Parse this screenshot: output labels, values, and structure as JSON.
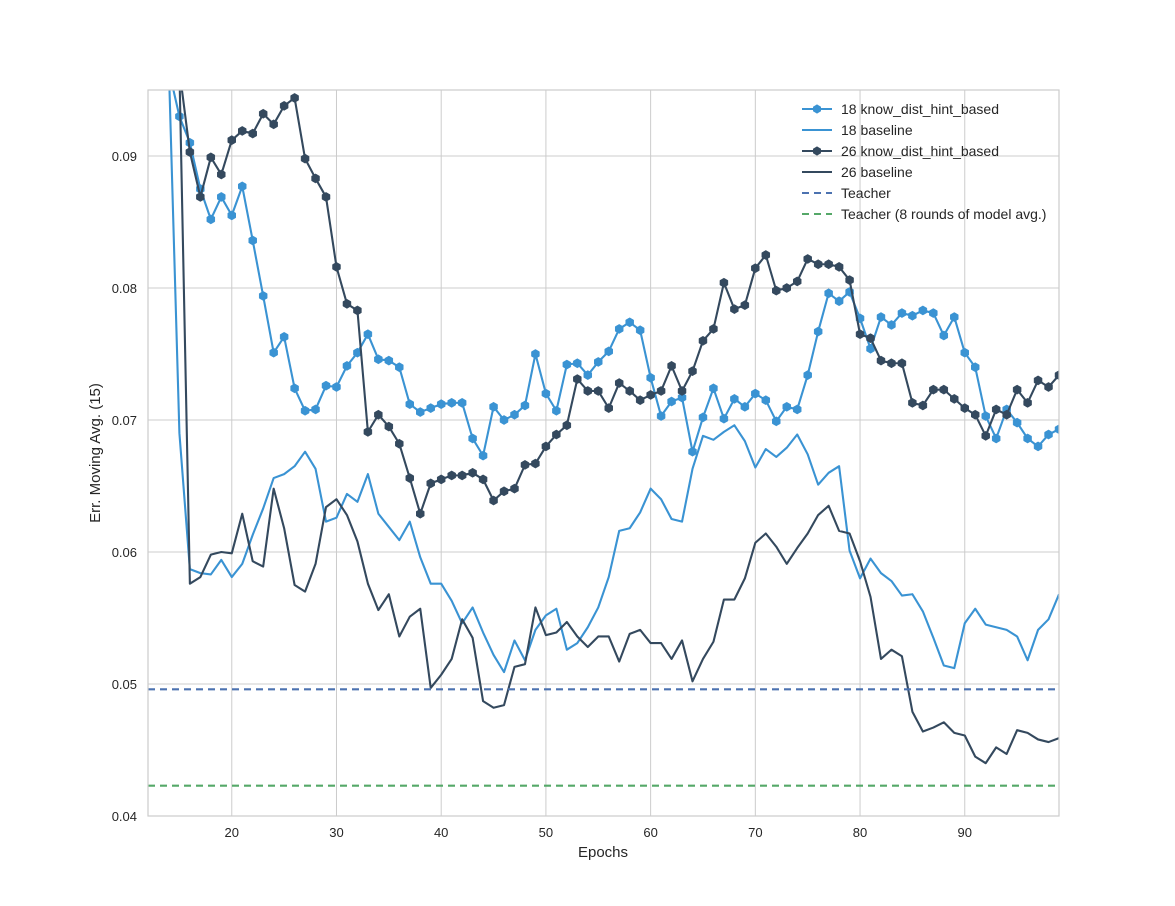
{
  "chart_data": {
    "type": "line",
    "title": "",
    "xlabel": "Epochs",
    "ylabel": "Err. Moving Avg. (15)",
    "xlim": [
      12,
      99
    ],
    "ylim": [
      0.04,
      0.095
    ],
    "xticks": [
      20,
      30,
      40,
      50,
      60,
      70,
      80,
      90
    ],
    "yticks": [
      0.04,
      0.05,
      0.06,
      0.07,
      0.08,
      0.09
    ],
    "xtick_labels": [
      "20",
      "30",
      "40",
      "50",
      "60",
      "70",
      "80",
      "90"
    ],
    "ytick_labels": [
      "0.04",
      "0.05",
      "0.06",
      "0.07",
      "0.08",
      "0.09"
    ],
    "grid": true,
    "legend_position": "top-right",
    "series": [
      {
        "name": "18 know_dist_hint_based",
        "color": "#3a93d3",
        "marker": "hexagon",
        "linestyle": "solid",
        "x": [
          14,
          15,
          16,
          17,
          18,
          19,
          20,
          21,
          22,
          23,
          24,
          25,
          26,
          27,
          28,
          29,
          30,
          31,
          32,
          33,
          34,
          35,
          36,
          37,
          38,
          39,
          40,
          41,
          42,
          43,
          44,
          45,
          46,
          47,
          48,
          49,
          50,
          51,
          52,
          53,
          54,
          55,
          56,
          57,
          58,
          59,
          60,
          61,
          62,
          63,
          64,
          65,
          66,
          67,
          68,
          69,
          70,
          71,
          72,
          73,
          74,
          75,
          76,
          77,
          78,
          79,
          80,
          81,
          82,
          83,
          84,
          85,
          86,
          87,
          88,
          89,
          90,
          91,
          92,
          93,
          94,
          95,
          96,
          97,
          98,
          99
        ],
        "y": [
          0.0965,
          0.093,
          0.091,
          0.0875,
          0.0852,
          0.0869,
          0.0855,
          0.0877,
          0.0836,
          0.0794,
          0.0751,
          0.0763,
          0.0724,
          0.0707,
          0.0708,
          0.0726,
          0.0725,
          0.0741,
          0.0751,
          0.0765,
          0.0746,
          0.0745,
          0.074,
          0.0712,
          0.0706,
          0.0709,
          0.0712,
          0.0713,
          0.0713,
          0.0686,
          0.0673,
          0.071,
          0.07,
          0.0704,
          0.0711,
          0.075,
          0.072,
          0.0707,
          0.0742,
          0.0743,
          0.0734,
          0.0744,
          0.0752,
          0.0769,
          0.0774,
          0.0768,
          0.0732,
          0.0703,
          0.0714,
          0.0717,
          0.0676,
          0.0702,
          0.0724,
          0.0701,
          0.0716,
          0.071,
          0.072,
          0.0715,
          0.0699,
          0.071,
          0.0708,
          0.0734,
          0.0767,
          0.0796,
          0.079,
          0.0797,
          0.0777,
          0.0754,
          0.0778,
          0.0772,
          0.0781,
          0.0779,
          0.0783,
          0.0781,
          0.0764,
          0.0778,
          0.0751,
          0.074,
          0.0703,
          0.0686,
          0.0708,
          0.0698,
          0.0686,
          0.068,
          0.0689,
          0.0693
        ]
      },
      {
        "name": "18 baseline",
        "color": "#3a93d3",
        "marker": "none",
        "linestyle": "solid",
        "x": [
          14,
          15,
          16,
          17,
          18,
          19,
          20,
          21,
          22,
          23,
          24,
          25,
          26,
          27,
          28,
          29,
          30,
          31,
          32,
          33,
          34,
          35,
          36,
          37,
          38,
          39,
          40,
          41,
          42,
          43,
          44,
          45,
          46,
          47,
          48,
          49,
          50,
          51,
          52,
          53,
          54,
          55,
          56,
          57,
          58,
          59,
          60,
          61,
          62,
          63,
          64,
          65,
          66,
          67,
          68,
          69,
          70,
          71,
          72,
          73,
          74,
          75,
          76,
          77,
          78,
          79,
          80,
          81,
          82,
          83,
          84,
          85,
          86,
          87,
          88,
          89,
          90,
          91,
          92,
          93,
          94,
          95,
          96,
          97,
          98,
          99
        ],
        "y": [
          0.0965,
          0.069,
          0.0587,
          0.0584,
          0.0583,
          0.0594,
          0.0581,
          0.0591,
          0.0613,
          0.0633,
          0.0656,
          0.0659,
          0.0665,
          0.0676,
          0.0663,
          0.0623,
          0.0626,
          0.0644,
          0.0638,
          0.0659,
          0.0629,
          0.0619,
          0.0609,
          0.0623,
          0.0596,
          0.0576,
          0.0576,
          0.0563,
          0.0546,
          0.0558,
          0.0539,
          0.0522,
          0.0509,
          0.0533,
          0.0518,
          0.0541,
          0.0552,
          0.0557,
          0.0526,
          0.0531,
          0.0543,
          0.0558,
          0.0581,
          0.0616,
          0.0618,
          0.063,
          0.0648,
          0.064,
          0.0625,
          0.0623,
          0.0663,
          0.0688,
          0.0685,
          0.0691,
          0.0696,
          0.0684,
          0.0664,
          0.0678,
          0.0672,
          0.0679,
          0.0689,
          0.0674,
          0.0651,
          0.066,
          0.0665,
          0.0601,
          0.058,
          0.0595,
          0.0584,
          0.0578,
          0.0567,
          0.0568,
          0.0555,
          0.0535,
          0.0514,
          0.0512,
          0.0546,
          0.0557,
          0.0545,
          0.0543,
          0.0541,
          0.0536,
          0.0518,
          0.0541,
          0.0549,
          0.0568
        ]
      },
      {
        "name": "26 know_dist_hint_based",
        "color": "#34495e",
        "marker": "hexagon",
        "linestyle": "solid",
        "x": [
          15,
          16,
          17,
          18,
          19,
          20,
          21,
          22,
          23,
          24,
          25,
          26,
          27,
          28,
          29,
          30,
          31,
          32,
          33,
          34,
          35,
          36,
          37,
          38,
          39,
          40,
          41,
          42,
          43,
          44,
          45,
          46,
          47,
          48,
          49,
          50,
          51,
          52,
          53,
          54,
          55,
          56,
          57,
          58,
          59,
          60,
          61,
          62,
          63,
          64,
          65,
          66,
          67,
          68,
          69,
          70,
          71,
          72,
          73,
          74,
          75,
          76,
          77,
          78,
          79,
          80,
          81,
          82,
          83,
          84,
          85,
          86,
          87,
          88,
          89,
          90,
          91,
          92,
          93,
          94,
          95,
          96,
          97,
          98,
          99
        ],
        "y": [
          0.0965,
          0.0903,
          0.0869,
          0.0899,
          0.0886,
          0.0912,
          0.0919,
          0.0917,
          0.0932,
          0.0924,
          0.0938,
          0.0944,
          0.0898,
          0.0883,
          0.0869,
          0.0816,
          0.0788,
          0.0783,
          0.0691,
          0.0704,
          0.0695,
          0.0682,
          0.0656,
          0.0629,
          0.0652,
          0.0655,
          0.0658,
          0.0658,
          0.066,
          0.0655,
          0.0639,
          0.0646,
          0.0648,
          0.0666,
          0.0667,
          0.068,
          0.0689,
          0.0696,
          0.0731,
          0.0722,
          0.0722,
          0.0709,
          0.0728,
          0.0722,
          0.0715,
          0.0719,
          0.0722,
          0.0741,
          0.0722,
          0.0737,
          0.076,
          0.0769,
          0.0804,
          0.0784,
          0.0787,
          0.0815,
          0.0825,
          0.0798,
          0.08,
          0.0805,
          0.0822,
          0.0818,
          0.0818,
          0.0816,
          0.0806,
          0.0765,
          0.0762,
          0.0745,
          0.0743,
          0.0743,
          0.0713,
          0.0711,
          0.0723,
          0.0723,
          0.0716,
          0.0709,
          0.0704,
          0.0688,
          0.0708,
          0.0704,
          0.0723,
          0.0713,
          0.073,
          0.0725,
          0.0734
        ]
      },
      {
        "name": "26 baseline",
        "color": "#34495e",
        "marker": "none",
        "linestyle": "solid",
        "x": [
          15,
          16,
          17,
          18,
          19,
          20,
          21,
          22,
          23,
          24,
          25,
          26,
          27,
          28,
          29,
          30,
          31,
          32,
          33,
          34,
          35,
          36,
          37,
          38,
          39,
          40,
          41,
          42,
          43,
          44,
          45,
          46,
          47,
          48,
          49,
          50,
          51,
          52,
          53,
          54,
          55,
          56,
          57,
          58,
          59,
          60,
          61,
          62,
          63,
          64,
          65,
          66,
          67,
          68,
          69,
          70,
          71,
          72,
          73,
          74,
          75,
          76,
          77,
          78,
          79,
          80,
          81,
          82,
          83,
          84,
          85,
          86,
          87,
          88,
          89,
          90,
          91,
          92,
          93,
          94,
          95,
          96,
          97,
          98,
          99
        ],
        "y": [
          0.0965,
          0.0576,
          0.0581,
          0.0598,
          0.06,
          0.0599,
          0.0629,
          0.0593,
          0.0589,
          0.0648,
          0.0618,
          0.0575,
          0.057,
          0.0591,
          0.0634,
          0.064,
          0.0628,
          0.0608,
          0.0576,
          0.0556,
          0.0568,
          0.0536,
          0.0551,
          0.0557,
          0.0497,
          0.0507,
          0.0519,
          0.0549,
          0.0535,
          0.0487,
          0.0482,
          0.0484,
          0.0513,
          0.0515,
          0.0558,
          0.0537,
          0.0539,
          0.0547,
          0.0536,
          0.0528,
          0.0536,
          0.0536,
          0.0517,
          0.0538,
          0.0541,
          0.0531,
          0.0531,
          0.0519,
          0.0533,
          0.0502,
          0.0519,
          0.0532,
          0.0564,
          0.0564,
          0.058,
          0.0607,
          0.0614,
          0.0604,
          0.0591,
          0.0603,
          0.0614,
          0.0628,
          0.0635,
          0.0616,
          0.0614,
          0.0593,
          0.0566,
          0.0519,
          0.0526,
          0.0521,
          0.0479,
          0.0464,
          0.0467,
          0.0471,
          0.0463,
          0.0461,
          0.0445,
          0.044,
          0.0452,
          0.0447,
          0.0465,
          0.0463,
          0.0458,
          0.0456,
          0.0459
        ]
      },
      {
        "name": "Teacher",
        "color": "#4c72b0",
        "marker": "none",
        "linestyle": "dashed",
        "x": [
          12,
          99
        ],
        "y": [
          0.0496,
          0.0496
        ]
      },
      {
        "name": "Teacher (8 rounds of model avg.)",
        "color": "#55a868",
        "marker": "none",
        "linestyle": "dashed",
        "x": [
          12,
          99
        ],
        "y": [
          0.0423,
          0.0423
        ]
      }
    ]
  }
}
